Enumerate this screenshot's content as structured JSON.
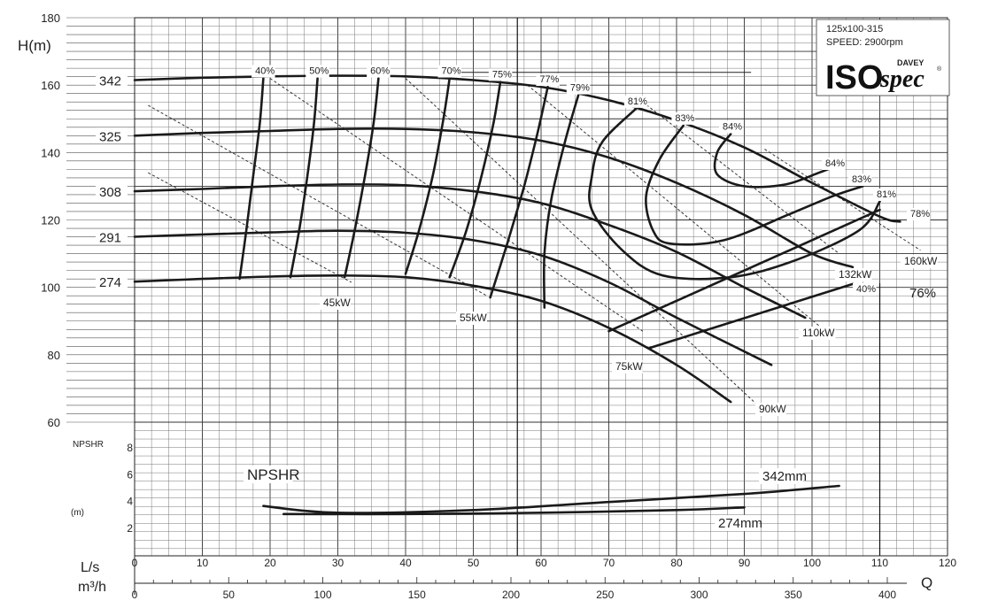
{
  "chart_data": {
    "type": "line",
    "title": "",
    "model": "125x100-315",
    "speed": "SPEED: 2900rpm",
    "brand": {
      "iso": "ISO",
      "spec": "spec",
      "maker": "DAVEY",
      "reg": "®"
    },
    "x_axis": {
      "ls_label": "L/s",
      "m3h_label": "m³/h",
      "q_label": "Q",
      "ls_ticks": [
        0,
        10,
        20,
        30,
        40,
        50,
        60,
        70,
        80,
        90,
        100,
        110,
        120
      ],
      "m3h_ticks": [
        0,
        50,
        100,
        150,
        200,
        250,
        300,
        350,
        400
      ],
      "xlim": [
        0,
        120
      ]
    },
    "y_axis": {
      "label": "H(m)",
      "ticks": [
        60,
        80,
        100,
        120,
        140,
        160,
        180
      ],
      "ylim": [
        55,
        180
      ]
    },
    "npshr_axis": {
      "label": "NPSHR",
      "unit": "(m)",
      "ticks": [
        2,
        4,
        6,
        8
      ]
    },
    "grid": true,
    "impeller_labels": [
      "342",
      "325",
      "308",
      "291",
      "274"
    ],
    "head_curves": [
      {
        "name": "342",
        "points": [
          [
            0,
            161.5
          ],
          [
            10,
            162.2
          ],
          [
            20,
            162.6
          ],
          [
            30,
            162.8
          ],
          [
            40,
            162.6
          ],
          [
            50,
            161.5
          ],
          [
            60,
            159.5
          ],
          [
            70,
            155.5
          ],
          [
            80,
            149.5
          ],
          [
            90,
            141.5
          ],
          [
            100,
            131
          ],
          [
            110,
            121
          ],
          [
            113,
            119.5
          ]
        ]
      },
      {
        "name": "325",
        "points": [
          [
            0,
            145
          ],
          [
            10,
            145.8
          ],
          [
            20,
            146.4
          ],
          [
            30,
            147
          ],
          [
            40,
            147
          ],
          [
            50,
            146
          ],
          [
            60,
            143.5
          ],
          [
            70,
            138.5
          ],
          [
            80,
            131
          ],
          [
            90,
            121.5
          ],
          [
            100,
            110
          ],
          [
            106,
            106
          ]
        ]
      },
      {
        "name": "308",
        "points": [
          [
            0,
            128.5
          ],
          [
            10,
            129.2
          ],
          [
            20,
            130
          ],
          [
            30,
            130.5
          ],
          [
            40,
            130.3
          ],
          [
            50,
            128.5
          ],
          [
            60,
            125
          ],
          [
            70,
            118.5
          ],
          [
            80,
            110.5
          ],
          [
            90,
            100
          ],
          [
            99,
            91
          ]
        ]
      },
      {
        "name": "291",
        "points": [
          [
            0,
            115
          ],
          [
            10,
            115.7
          ],
          [
            20,
            116.3
          ],
          [
            30,
            116.8
          ],
          [
            40,
            116.2
          ],
          [
            50,
            114
          ],
          [
            60,
            109.5
          ],
          [
            70,
            101.5
          ],
          [
            80,
            91
          ],
          [
            94,
            77
          ]
        ]
      },
      {
        "name": "274",
        "points": [
          [
            0,
            101.7
          ],
          [
            10,
            102.5
          ],
          [
            20,
            103.2
          ],
          [
            30,
            103.5
          ],
          [
            40,
            103
          ],
          [
            50,
            100.5
          ],
          [
            60,
            96
          ],
          [
            70,
            88
          ],
          [
            80,
            77
          ],
          [
            88,
            66
          ]
        ]
      }
    ],
    "efficiency_curves": [
      {
        "label": "40%",
        "points": [
          [
            15.5,
            102.5
          ],
          [
            16.5,
            117
          ],
          [
            17.5,
            133
          ],
          [
            18.5,
            149
          ],
          [
            19,
            162
          ]
        ]
      },
      {
        "label": "50%",
        "points": [
          [
            23,
            103
          ],
          [
            24.3,
            117
          ],
          [
            25.5,
            133
          ],
          [
            26.5,
            149
          ],
          [
            27,
            162
          ]
        ]
      },
      {
        "label": "60%",
        "points": [
          [
            31,
            103
          ],
          [
            32.5,
            117
          ],
          [
            34,
            133
          ],
          [
            35.3,
            149
          ],
          [
            36,
            162
          ]
        ]
      },
      {
        "label": "70%",
        "points": [
          [
            40,
            104
          ],
          [
            42,
            117
          ],
          [
            44,
            133
          ],
          [
            45.5,
            149
          ],
          [
            46.5,
            162
          ]
        ]
      },
      {
        "label": "75%",
        "points": [
          [
            46.5,
            103
          ],
          [
            49,
            117
          ],
          [
            51.2,
            133
          ],
          [
            53,
            149
          ],
          [
            54,
            161
          ]
        ]
      },
      {
        "label": "77%",
        "points": [
          [
            52.5,
            97
          ],
          [
            55,
            113
          ],
          [
            57.5,
            130
          ],
          [
            59.5,
            146
          ],
          [
            61,
            159.5
          ]
        ]
      },
      {
        "label": "79%",
        "points": [
          [
            60.5,
            94
          ],
          [
            60.5,
            110
          ],
          [
            61.5,
            126
          ],
          [
            63.5,
            143
          ],
          [
            65.5,
            157
          ]
        ]
      },
      {
        "label": "81%",
        "points": [
          [
            74,
            153
          ],
          [
            69,
            143
          ],
          [
            67.5,
            133
          ],
          [
            67.5,
            123
          ],
          [
            72,
            111
          ],
          [
            78,
            103.5
          ],
          [
            88,
            103
          ],
          [
            97.5,
            108
          ],
          [
            107,
            117
          ],
          [
            110,
            125.5
          ]
        ]
      },
      {
        "label": "83%",
        "points": [
          [
            81,
            148
          ],
          [
            77.5,
            138
          ],
          [
            75.5,
            127
          ],
          [
            76.5,
            117
          ],
          [
            79,
            113
          ],
          [
            87,
            114
          ],
          [
            97,
            122
          ],
          [
            103,
            127
          ],
          [
            107.5,
            130
          ]
        ]
      },
      {
        "label": "84%",
        "points": [
          [
            88,
            145.5
          ],
          [
            86,
            140
          ],
          [
            86,
            133.5
          ],
          [
            90,
            130
          ],
          [
            96,
            130.5
          ],
          [
            101,
            134
          ],
          [
            103.5,
            136
          ]
        ]
      }
    ],
    "efficiency_labels_right": [
      "84%",
      "83%",
      "81%",
      "78%",
      "40%",
      "76%"
    ],
    "power_lines": [
      {
        "label": "45kW",
        "points": [
          [
            2,
            134
          ],
          [
            32,
            101.5
          ]
        ]
      },
      {
        "label": "55kW",
        "points": [
          [
            2,
            154
          ],
          [
            52,
            97.5
          ]
        ]
      },
      {
        "label": "75kW",
        "points": [
          [
            20,
            162
          ],
          [
            75,
            87
          ]
        ]
      },
      {
        "label": "90kW",
        "points": [
          [
            40,
            162
          ],
          [
            92,
            65
          ]
        ]
      },
      {
        "label": "110kW",
        "points": [
          [
            58,
            160
          ],
          [
            102,
            87
          ]
        ]
      },
      {
        "label": "132kW",
        "points": [
          [
            75,
            155
          ],
          [
            104,
            110
          ]
        ]
      },
      {
        "label": "160kW",
        "points": [
          [
            93,
            141
          ],
          [
            116,
            111
          ]
        ]
      }
    ],
    "power_extra_lines": [
      {
        "points": [
          [
            70,
            87
          ],
          [
            110,
            123
          ]
        ]
      },
      {
        "points": [
          [
            76,
            82
          ],
          [
            106,
            101
          ]
        ]
      }
    ],
    "npshr_curves": [
      {
        "name": "342mm",
        "points": [
          [
            19,
            3.6
          ],
          [
            30,
            3.1
          ],
          [
            50,
            3.3
          ],
          [
            70,
            3.9
          ],
          [
            90,
            4.5
          ],
          [
            104,
            5.1
          ]
        ]
      },
      {
        "name": "274mm",
        "points": [
          [
            22,
            3.0
          ],
          [
            40,
            3.0
          ],
          [
            60,
            3.1
          ],
          [
            80,
            3.3
          ],
          [
            90,
            3.5
          ]
        ]
      }
    ],
    "npshr_title": "NPSHR"
  }
}
